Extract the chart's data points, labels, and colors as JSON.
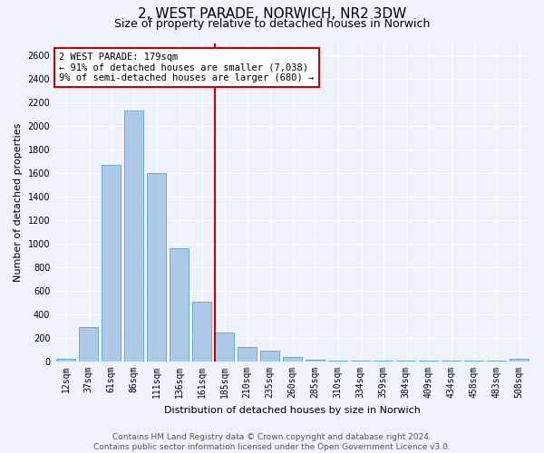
{
  "title": "2, WEST PARADE, NORWICH, NR2 3DW",
  "subtitle": "Size of property relative to detached houses in Norwich",
  "xlabel": "Distribution of detached houses by size in Norwich",
  "ylabel": "Number of detached properties",
  "bar_labels": [
    "12sqm",
    "37sqm",
    "61sqm",
    "86sqm",
    "111sqm",
    "136sqm",
    "161sqm",
    "185sqm",
    "210sqm",
    "235sqm",
    "260sqm",
    "285sqm",
    "310sqm",
    "334sqm",
    "359sqm",
    "384sqm",
    "409sqm",
    "434sqm",
    "458sqm",
    "483sqm",
    "508sqm"
  ],
  "bar_values": [
    20,
    295,
    1670,
    2130,
    1600,
    960,
    505,
    250,
    125,
    95,
    35,
    15,
    5,
    5,
    5,
    5,
    5,
    5,
    5,
    5,
    20
  ],
  "bar_color": "#adc9e8",
  "bar_edgecolor": "#6aaad4",
  "vline_x_index": 7,
  "vline_color": "#cc0000",
  "annotation_title": "2 WEST PARADE: 179sqm",
  "annotation_line1": "← 91% of detached houses are smaller (7,038)",
  "annotation_line2": "9% of semi-detached houses are larger (680) →",
  "annotation_box_color": "#cc0000",
  "ylim": [
    0,
    2700
  ],
  "yticks": [
    0,
    200,
    400,
    600,
    800,
    1000,
    1200,
    1400,
    1600,
    1800,
    2000,
    2200,
    2400,
    2600
  ],
  "footer_line1": "Contains HM Land Registry data © Crown copyright and database right 2024.",
  "footer_line2": "Contains public sector information licensed under the Open Government Licence v3.0.",
  "background_color": "#eef2fa",
  "plot_bg_color": "#eef2fa",
  "grid_color": "#ffffff",
  "title_fontsize": 11,
  "subtitle_fontsize": 9,
  "axis_label_fontsize": 8,
  "tick_fontsize": 7,
  "footer_fontsize": 6.5,
  "annotation_fontsize": 7.5
}
